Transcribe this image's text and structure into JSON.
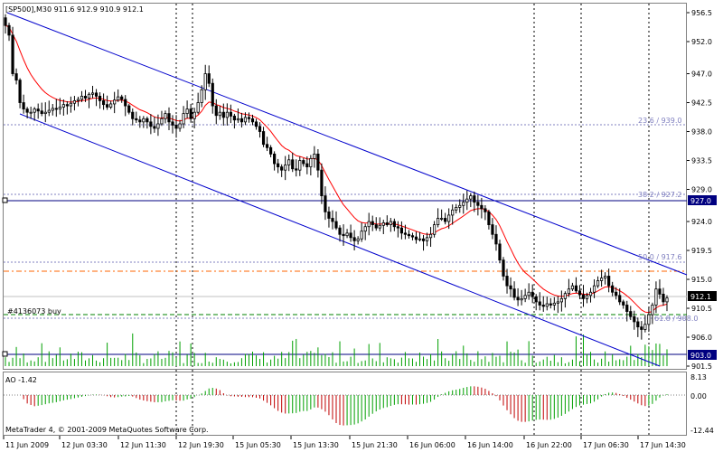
{
  "window": {
    "header": "[SP500],M30  911.6 912.9 910.9 912.1",
    "copyright": "MetaTrader 4, © 2001-2009 MetaQuotes Software Corp."
  },
  "colors": {
    "candle": "#000000",
    "ma": "#ff0000",
    "channel": "#0000cc",
    "fib": "#8080c0",
    "order": "#008000",
    "hline": "#000080",
    "dashorange": "#ff6600",
    "volume": "#00a000",
    "ao_up": "#00a000",
    "ao_down": "#c00000",
    "tag_bg": "#000080"
  },
  "price_axis": {
    "labels": [
      "956.5",
      "952.0",
      "947.0",
      "942.5",
      "938.0",
      "933.5",
      "929.0",
      "924.0",
      "919.5",
      "915.0",
      "910.5",
      "906.0",
      "901.5"
    ]
  },
  "price_tags": {
    "level_927": "927.0",
    "current": "912.1",
    "level_903": "903.0"
  },
  "fib_labels": {
    "l236": "23.6 / 939.0",
    "l382": "38.2 / 927.2",
    "l500": "50.0 / 917.6",
    "l618": "61.8 / 908.0"
  },
  "order_label": "#4136073 buy",
  "ao_panel": {
    "title": "AO -1.42",
    "axis": [
      "8.13",
      "0.00",
      "-12.44"
    ]
  },
  "time_axis": [
    "11 Jun 2009",
    "12 Jun 03:30",
    "12 Jun 11:30",
    "12 Jun 19:30",
    "15 Jun 05:30",
    "15 Jun 13:30",
    "15 Jun 21:30",
    "16 Jun 06:00",
    "16 Jun 14:00",
    "16 Jun 22:00",
    "17 Jun 06:30",
    "17 Jun 14:30"
  ],
  "chart_data": {
    "type": "candlestick",
    "symbol": "SP500",
    "timeframe": "M30",
    "last_bar": {
      "open": 911.6,
      "high": 912.9,
      "low": 910.9,
      "close": 912.1
    },
    "ylim": [
      901.5,
      956.5
    ],
    "x_labels": [
      "11 Jun 2009",
      "12 Jun 03:30",
      "12 Jun 11:30",
      "12 Jun 19:30",
      "15 Jun 05:30",
      "15 Jun 13:30",
      "15 Jun 21:30",
      "16 Jun 06:00",
      "16 Jun 14:00",
      "16 Jun 22:00",
      "17 Jun 06:30",
      "17 Jun 14:30"
    ],
    "levels": [
      {
        "name": "23.6 / 939.0",
        "price": 939.0
      },
      {
        "name": "38.2 / 927.2",
        "price": 927.2
      },
      {
        "name": "50.0 / 917.6",
        "price": 917.6
      },
      {
        "name": "61.8 / 908.0",
        "price": 908.0
      },
      {
        "name": "927.0",
        "price": 927.0
      },
      {
        "name": "903.0",
        "price": 903.0
      },
      {
        "name": "#4136073 buy",
        "price": 909.2
      }
    ],
    "closes": [
      954.5,
      953.0,
      947.0,
      946.0,
      942.5,
      941.5,
      941.0,
      941.0,
      941.5,
      941.2,
      940.8,
      941.0,
      941.3,
      941.6,
      941.5,
      941.8,
      942.2,
      942.0,
      942.4,
      942.8,
      943.0,
      943.5,
      943.2,
      943.8,
      944.0,
      943.5,
      942.8,
      942.2,
      941.8,
      942.3,
      942.9,
      943.4,
      943.0,
      942.0,
      941.0,
      940.0,
      939.8,
      939.5,
      940.0,
      939.5,
      938.8,
      938.5,
      939.2,
      940.0,
      940.8,
      939.5,
      939.0,
      938.5,
      939.2,
      940.8,
      941.5,
      940.0,
      941.0,
      942.5,
      944.5,
      947.0,
      945.5,
      942.0,
      940.5,
      941.0,
      940.2,
      941.0,
      940.4,
      939.8,
      940.0,
      939.5,
      940.2,
      940.0,
      939.5,
      938.8,
      938.0,
      936.0,
      935.5,
      934.5,
      933.0,
      932.5,
      932.0,
      932.8,
      933.6,
      932.2,
      932.0,
      933.5,
      933.0,
      932.5,
      933.8,
      934.5,
      932.0,
      928.0,
      925.5,
      924.5,
      924.0,
      923.0,
      922.0,
      921.8,
      922.2,
      921.5,
      921.0,
      921.3,
      922.5,
      923.2,
      924.0,
      923.5,
      923.0,
      923.4,
      923.8,
      923.5,
      924.0,
      923.2,
      923.0,
      922.2,
      922.0,
      921.8,
      921.6,
      921.2,
      921.3,
      921.0,
      921.5,
      922.0,
      923.5,
      924.5,
      924.5,
      924.0,
      925.0,
      925.8,
      926.2,
      926.5,
      927.0,
      927.5,
      928.0,
      927.0,
      926.5,
      926.0,
      925.5,
      923.5,
      922.0,
      920.5,
      918.0,
      915.5,
      914.0,
      913.5,
      912.2,
      911.8,
      912.0,
      912.5,
      913.0,
      912.3,
      911.5,
      911.0,
      910.8,
      911.2,
      911.0,
      911.3,
      911.5,
      912.0,
      912.8,
      913.5,
      914.0,
      913.2,
      912.6,
      912.0,
      912.5,
      913.0,
      914.0,
      914.8,
      915.2,
      915.5,
      914.0,
      913.0,
      912.5,
      911.5,
      911.0,
      910.0,
      909.2,
      908.4,
      907.6,
      907.2,
      908.0,
      909.5,
      911.0,
      913.5,
      912.7,
      911.5,
      912.1
    ]
  }
}
